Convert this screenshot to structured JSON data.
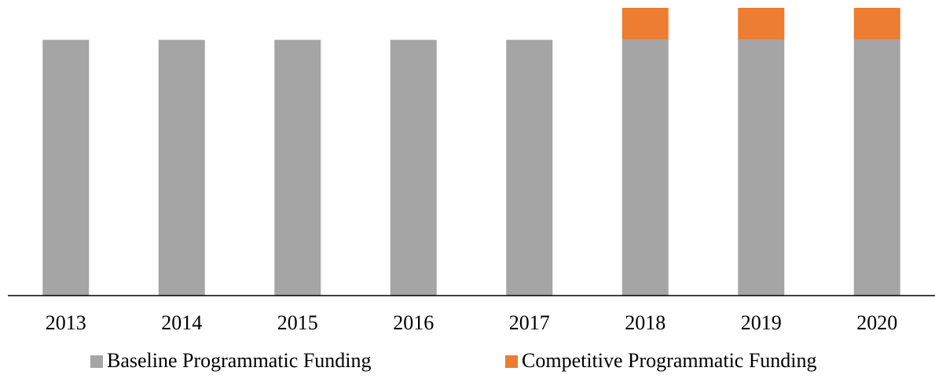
{
  "chart_data": {
    "type": "stacked_bar",
    "categories": [
      "2013",
      "2014",
      "2015",
      "2016",
      "2017",
      "2018",
      "2019",
      "2020"
    ],
    "series": [
      {
        "name": "Baseline Programmatic Funding",
        "color": "#a5a5a5",
        "values": [
          100,
          100,
          100,
          100,
          100,
          100,
          100,
          100
        ]
      },
      {
        "name": "Competitive Programmatic Funding",
        "color": "#ed7d31",
        "values": [
          0,
          0,
          0,
          0,
          0,
          12.5,
          12.5,
          12.5
        ]
      }
    ],
    "legend": "bottom"
  }
}
